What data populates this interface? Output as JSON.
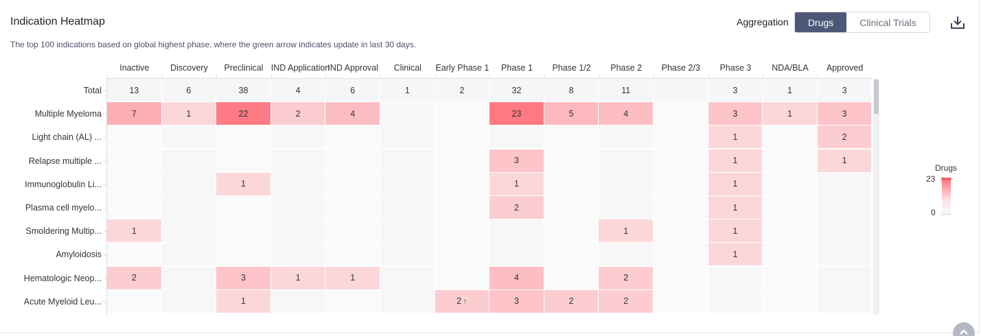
{
  "header": {
    "title": "Indication Heatmap",
    "subtitle": "The top 100 indications based on global highest phase, where the green arrow indicates update in last 30 days.",
    "aggregation_label": "Aggregation",
    "toggle": {
      "active": "Drugs",
      "inactive": "Clinical Trials"
    },
    "download_icon": "download-icon"
  },
  "heatmap": {
    "columns": [
      "Inactive",
      "Discovery",
      "Preclinical",
      "IND Application",
      "IND Approval",
      "Clinical",
      "Early Phase 1",
      "Phase 1",
      "Phase 1/2",
      "Phase 2",
      "Phase 2/3",
      "Phase 3",
      "NDA/BLA",
      "Approved"
    ],
    "rows": [
      {
        "label": "Total",
        "values": [
          13,
          6,
          38,
          4,
          6,
          1,
          2,
          32,
          8,
          11,
          null,
          3,
          1,
          3
        ]
      },
      {
        "label": "Multiple Myeloma",
        "values": [
          7,
          1,
          22,
          2,
          4,
          null,
          null,
          23,
          5,
          4,
          null,
          3,
          1,
          3
        ]
      },
      {
        "label": "Light chain (AL) ...",
        "values": [
          null,
          null,
          null,
          null,
          null,
          null,
          null,
          null,
          null,
          null,
          null,
          1,
          null,
          2
        ]
      },
      {
        "label": "Relapse multiple ...",
        "values": [
          null,
          null,
          null,
          null,
          null,
          null,
          null,
          3,
          null,
          null,
          null,
          1,
          null,
          1
        ]
      },
      {
        "label": "Immunoglobulin Li...",
        "values": [
          null,
          null,
          1,
          null,
          null,
          null,
          null,
          1,
          null,
          null,
          null,
          1,
          null,
          null
        ]
      },
      {
        "label": "Plasma cell myelo...",
        "values": [
          null,
          null,
          null,
          null,
          null,
          null,
          null,
          2,
          null,
          null,
          null,
          1,
          null,
          null
        ]
      },
      {
        "label": "Smoldering Multip...",
        "values": [
          1,
          null,
          null,
          null,
          null,
          null,
          null,
          null,
          null,
          1,
          null,
          1,
          null,
          null
        ]
      },
      {
        "label": "Amyloidosis",
        "values": [
          null,
          null,
          null,
          null,
          null,
          null,
          null,
          null,
          null,
          null,
          null,
          1,
          null,
          null
        ]
      },
      {
        "label": "Hematologic Neop...",
        "values": [
          2,
          null,
          3,
          1,
          1,
          null,
          null,
          4,
          null,
          2,
          null,
          null,
          null,
          null
        ]
      },
      {
        "label": "Acute Myeloid Leu...",
        "values": [
          null,
          null,
          1,
          null,
          null,
          null,
          2,
          3,
          2,
          2,
          null,
          null,
          null,
          null
        ]
      }
    ],
    "updated_cells": [
      {
        "row": 9,
        "col": 6
      }
    ],
    "max_color": "#ff6f79",
    "min_color": "#fbfbfb",
    "total_row_color": "#f5f6f8"
  },
  "legend": {
    "title": "Drugs",
    "max": "23",
    "min": "0"
  },
  "scroll_top_icon": "arrow-up-icon"
}
